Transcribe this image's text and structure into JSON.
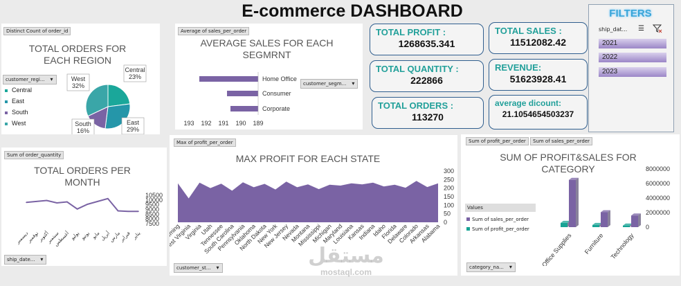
{
  "title": "E-commerce DASHBOARD",
  "filters": {
    "title": "FILTERS",
    "field_label": "ship_dat...",
    "years": [
      "2021",
      "2022",
      "2023"
    ]
  },
  "kpis": {
    "total_profit": {
      "label": "TOTAL PROFIT :",
      "value": "1268635.341"
    },
    "total_sales": {
      "label": "TOTAL SALES :",
      "value": "11512082.42"
    },
    "total_quantity": {
      "label": "TOTAL QUANTITY :",
      "value": "222866"
    },
    "revenue": {
      "label": "REVENUE:",
      "value": "51623928.41"
    },
    "total_orders": {
      "label": "TOTAL ORDERS :",
      "value": "113270"
    },
    "average_discount": {
      "label": "average dicount:",
      "value": "21.1054654503237"
    }
  },
  "region_panel": {
    "tag": "Distinct Count of order_id",
    "title_line1": "TOTAL ORDERS FOR",
    "title_line2": "EACH REGION",
    "filter": "customer_regi...",
    "legend": [
      {
        "label": "Central",
        "color": "#1aa79a"
      },
      {
        "label": "East",
        "color": "#2596a9"
      },
      {
        "label": "South",
        "color": "#7a63a4"
      },
      {
        "label": "West",
        "color": "#3aa6a8"
      }
    ]
  },
  "segment_panel": {
    "tag": "Average of sales_per_order",
    "title_line1": "AVERAGE SALES FOR EACH",
    "title_line2": "SEGMRNT",
    "filter": "customer_segm..."
  },
  "month_panel": {
    "tag": "Sum of order_quantity",
    "title_line1": "TOTAL ORDERS PER",
    "title_line2": "MONTH",
    "filter": "ship_date..."
  },
  "state_panel": {
    "tag": "Max of profit_per_order",
    "title": "MAX PROFIT FOR EACH STATE",
    "filter": "customer_st..."
  },
  "category_panel": {
    "tag1": "Sum of profit_per_order",
    "tag2": "Sum of sales_per_order",
    "title_line1": "SUM OF PROFIT&SALES FOR",
    "title_line2": "CATEGORY",
    "legend_title": "Values",
    "filter": "category_na..."
  },
  "watermark": {
    "text": "مستقل",
    "url": "mostaql.com"
  },
  "chart_data": [
    {
      "id": "region_pie",
      "type": "pie",
      "categories": [
        "Central",
        "East",
        "South",
        "West"
      ],
      "values": [
        23,
        29,
        16,
        32
      ],
      "colors": [
        "#1aa79a",
        "#2596a9",
        "#7a63a4",
        "#3aa6a8"
      ],
      "data_labels": [
        "Central\n23%",
        "East\n29%",
        "South\n16%",
        "West\n32%"
      ],
      "legend": "left"
    },
    {
      "id": "segment_bar",
      "type": "bar",
      "orientation": "horizontal",
      "categories": [
        "Home Office",
        "Consumer",
        "Corporate"
      ],
      "values": [
        192.4,
        190.8,
        190.6
      ],
      "xlim": [
        193,
        189
      ],
      "x_ticks": [
        "193",
        "192",
        "191",
        "190",
        "189"
      ],
      "reversed_axis": true,
      "color": "#7a63a4"
    },
    {
      "id": "month_line",
      "type": "line",
      "categories": [
        "ديسمبر",
        "نوفمبر",
        "أكتوبر",
        "سبتمبر",
        "أغسطس",
        "يوليو",
        "يونيو",
        "مايو",
        "أبريل",
        "مارس",
        "فبراير",
        "يناير"
      ],
      "values": [
        9750,
        9850,
        9950,
        9700,
        9800,
        9050,
        9550,
        9850,
        10150,
        8850,
        8800,
        8800
      ],
      "ylim": [
        7500,
        10500
      ],
      "y_ticks": [
        "10500",
        "10000",
        "9500",
        "9000",
        "8500",
        "8000",
        "7500"
      ],
      "y_axis_side": "right",
      "color": "#7a63a4"
    },
    {
      "id": "state_area",
      "type": "area",
      "categories": [
        "Wyoming",
        "West Virginia",
        "Virginia",
        "Utah",
        "Tennessee",
        "South Carolina",
        "Pennsylvania",
        "Oklahoma",
        "North Dakota",
        "New York",
        "New Jersey",
        "Nevada",
        "Montana",
        "Mississippi",
        "Michigan",
        "Maryland",
        "Louisiana",
        "Kansas",
        "Indiana",
        "Idaho",
        "Florida",
        "Delaware",
        "Colorado",
        "Arkansas",
        "Alabama"
      ],
      "values": [
        228,
        140,
        232,
        200,
        226,
        185,
        234,
        205,
        225,
        192,
        238,
        205,
        222,
        194,
        220,
        215,
        228,
        222,
        232,
        210,
        220,
        202,
        242,
        206,
        228
      ],
      "ylim": [
        0,
        300
      ],
      "y_ticks": [
        "300",
        "250",
        "200",
        "150",
        "100",
        "50",
        "0"
      ],
      "y_axis_side": "right",
      "color": "#7a63a4"
    },
    {
      "id": "category_bar",
      "type": "bar",
      "categories": [
        "Office Supplies",
        "Furniture",
        "Technology"
      ],
      "series": [
        {
          "name": "Sum of sales_per_order",
          "values": [
            6500000,
            2050000,
            1600000
          ],
          "color": "#7a63a4"
        },
        {
          "name": "Sum of profit_per_order",
          "values": [
            580000,
            300000,
            220000
          ],
          "color": "#17a394"
        }
      ],
      "ylim": [
        0,
        8000000
      ],
      "y_ticks": [
        "8000000",
        "6000000",
        "4000000",
        "2000000",
        "0"
      ],
      "legend": "left"
    }
  ]
}
